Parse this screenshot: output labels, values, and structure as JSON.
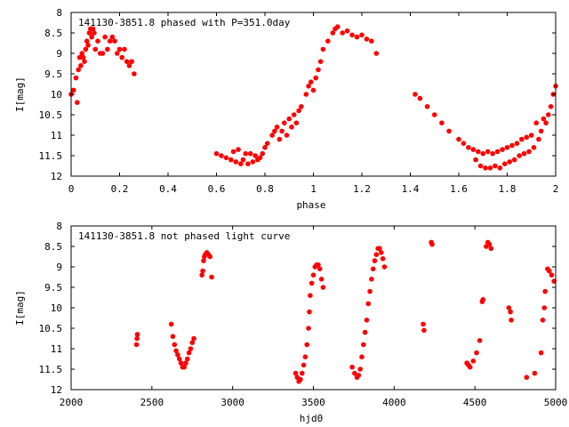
{
  "chart_data": [
    {
      "type": "scatter",
      "title": "141130-3851.8 phased with P=351.0day",
      "xlabel": "phase",
      "ylabel": "I[mag]",
      "xlim": [
        0,
        2
      ],
      "ylim": [
        8,
        12
      ],
      "y_inverted": true,
      "grid": false,
      "xticks": [
        "0",
        "0.2",
        "0.4",
        "0.6",
        "0.8",
        "1",
        "1.2",
        "1.4",
        "1.6",
        "1.8",
        "2"
      ],
      "yticks": [
        "8",
        "8.5",
        "9",
        "9.5",
        "10",
        "10.5",
        "11",
        "11.5",
        "12"
      ],
      "marker_color": "#ff0000",
      "series": [
        {
          "points": [
            [
              0.0,
              10.0
            ],
            [
              0.01,
              9.9
            ],
            [
              0.02,
              9.6
            ],
            [
              0.025,
              10.2
            ],
            [
              0.03,
              9.4
            ],
            [
              0.035,
              9.1
            ],
            [
              0.04,
              9.3
            ],
            [
              0.045,
              9.0
            ],
            [
              0.05,
              9.1
            ],
            [
              0.055,
              9.2
            ],
            [
              0.06,
              8.9
            ],
            [
              0.065,
              8.7
            ],
            [
              0.07,
              8.8
            ],
            [
              0.075,
              8.5
            ],
            [
              0.08,
              8.4
            ],
            [
              0.085,
              8.6
            ],
            [
              0.09,
              8.4
            ],
            [
              0.095,
              8.5
            ],
            [
              0.1,
              8.9
            ],
            [
              0.11,
              8.7
            ],
            [
              0.12,
              9.0
            ],
            [
              0.13,
              9.0
            ],
            [
              0.14,
              8.6
            ],
            [
              0.15,
              8.9
            ],
            [
              0.16,
              8.7
            ],
            [
              0.17,
              8.6
            ],
            [
              0.18,
              8.7
            ],
            [
              0.19,
              9.0
            ],
            [
              0.2,
              8.9
            ],
            [
              0.21,
              9.1
            ],
            [
              0.22,
              8.9
            ],
            [
              0.23,
              9.2
            ],
            [
              0.24,
              9.3
            ],
            [
              0.25,
              9.2
            ],
            [
              0.26,
              9.5
            ],
            [
              0.6,
              11.45
            ],
            [
              0.62,
              11.5
            ],
            [
              0.64,
              11.55
            ],
            [
              0.66,
              11.6
            ],
            [
              0.67,
              11.4
            ],
            [
              0.68,
              11.65
            ],
            [
              0.69,
              11.35
            ],
            [
              0.7,
              11.7
            ],
            [
              0.71,
              11.6
            ],
            [
              0.72,
              11.45
            ],
            [
              0.73,
              11.7
            ],
            [
              0.74,
              11.45
            ],
            [
              0.75,
              11.65
            ],
            [
              0.76,
              11.5
            ],
            [
              0.77,
              11.6
            ],
            [
              0.78,
              11.55
            ],
            [
              0.79,
              11.45
            ],
            [
              0.8,
              11.3
            ],
            [
              0.81,
              11.2
            ],
            [
              0.83,
              11.0
            ],
            [
              0.84,
              10.9
            ],
            [
              0.85,
              10.8
            ],
            [
              0.86,
              11.1
            ],
            [
              0.87,
              10.9
            ],
            [
              0.88,
              10.7
            ],
            [
              0.89,
              11.0
            ],
            [
              0.9,
              10.6
            ],
            [
              0.91,
              10.8
            ],
            [
              0.92,
              10.5
            ],
            [
              0.93,
              10.7
            ],
            [
              0.94,
              10.4
            ],
            [
              0.95,
              10.3
            ],
            [
              0.97,
              10.0
            ],
            [
              0.98,
              9.8
            ],
            [
              0.99,
              9.7
            ],
            [
              1.0,
              9.9
            ],
            [
              1.01,
              9.6
            ],
            [
              1.02,
              9.4
            ],
            [
              1.03,
              9.2
            ],
            [
              1.04,
              8.9
            ],
            [
              1.06,
              8.7
            ],
            [
              1.08,
              8.5
            ],
            [
              1.09,
              8.4
            ],
            [
              1.1,
              8.35
            ],
            [
              1.12,
              8.5
            ],
            [
              1.14,
              8.45
            ],
            [
              1.16,
              8.55
            ],
            [
              1.18,
              8.6
            ],
            [
              1.2,
              8.55
            ],
            [
              1.22,
              8.65
            ],
            [
              1.24,
              8.7
            ],
            [
              1.26,
              9.0
            ],
            [
              1.42,
              10.0
            ],
            [
              1.44,
              10.1
            ],
            [
              1.47,
              10.3
            ],
            [
              1.5,
              10.5
            ],
            [
              1.53,
              10.7
            ],
            [
              1.56,
              10.9
            ],
            [
              1.6,
              11.1
            ],
            [
              1.62,
              11.2
            ],
            [
              1.64,
              11.3
            ],
            [
              1.66,
              11.35
            ],
            [
              1.67,
              11.6
            ],
            [
              1.68,
              11.4
            ],
            [
              1.69,
              11.75
            ],
            [
              1.7,
              11.45
            ],
            [
              1.71,
              11.8
            ],
            [
              1.72,
              11.4
            ],
            [
              1.73,
              11.8
            ],
            [
              1.74,
              11.45
            ],
            [
              1.75,
              11.75
            ],
            [
              1.76,
              11.4
            ],
            [
              1.77,
              11.8
            ],
            [
              1.78,
              11.35
            ],
            [
              1.79,
              11.7
            ],
            [
              1.8,
              11.3
            ],
            [
              1.81,
              11.65
            ],
            [
              1.82,
              11.25
            ],
            [
              1.83,
              11.6
            ],
            [
              1.84,
              11.2
            ],
            [
              1.85,
              11.5
            ],
            [
              1.86,
              11.1
            ],
            [
              1.87,
              11.45
            ],
            [
              1.88,
              11.05
            ],
            [
              1.89,
              11.4
            ],
            [
              1.9,
              11.0
            ],
            [
              1.91,
              11.3
            ],
            [
              1.92,
              10.7
            ],
            [
              1.93,
              11.1
            ],
            [
              1.94,
              10.9
            ],
            [
              1.95,
              10.6
            ],
            [
              1.96,
              10.7
            ],
            [
              1.97,
              10.5
            ],
            [
              1.98,
              10.3
            ],
            [
              1.99,
              10.0
            ],
            [
              2.0,
              9.8
            ]
          ]
        }
      ]
    },
    {
      "type": "scatter",
      "title": "141130-3851.8 not phased light curve",
      "xlabel": "hjd0",
      "ylabel": "I[mag]",
      "xlim": [
        2000,
        5000
      ],
      "ylim": [
        8,
        12
      ],
      "y_inverted": true,
      "grid": false,
      "xticks": [
        "2000",
        "2500",
        "3000",
        "3500",
        "4000",
        "4500",
        "5000"
      ],
      "yticks": [
        "8",
        "8.5",
        "9",
        "9.5",
        "10",
        "10.5",
        "11",
        "11.5",
        "12"
      ],
      "marker_color": "#ff0000",
      "series": [
        {
          "points": [
            [
              2405,
              10.9
            ],
            [
              2408,
              10.75
            ],
            [
              2410,
              10.65
            ],
            [
              2620,
              10.4
            ],
            [
              2630,
              10.7
            ],
            [
              2640,
              10.9
            ],
            [
              2650,
              11.05
            ],
            [
              2660,
              11.15
            ],
            [
              2670,
              11.25
            ],
            [
              2680,
              11.35
            ],
            [
              2690,
              11.45
            ],
            [
              2700,
              11.45
            ],
            [
              2710,
              11.35
            ],
            [
              2720,
              11.25
            ],
            [
              2730,
              11.1
            ],
            [
              2740,
              11.0
            ],
            [
              2750,
              10.85
            ],
            [
              2760,
              10.75
            ],
            [
              2810,
              9.2
            ],
            [
              2815,
              9.1
            ],
            [
              2820,
              8.85
            ],
            [
              2825,
              8.75
            ],
            [
              2830,
              8.7
            ],
            [
              2840,
              8.65
            ],
            [
              2850,
              8.7
            ],
            [
              2860,
              8.75
            ],
            [
              2870,
              9.25
            ],
            [
              3390,
              11.6
            ],
            [
              3400,
              11.7
            ],
            [
              3410,
              11.8
            ],
            [
              3420,
              11.75
            ],
            [
              3430,
              11.6
            ],
            [
              3440,
              11.4
            ],
            [
              3450,
              11.2
            ],
            [
              3460,
              10.9
            ],
            [
              3470,
              10.5
            ],
            [
              3475,
              10.1
            ],
            [
              3480,
              9.7
            ],
            [
              3490,
              9.4
            ],
            [
              3500,
              9.2
            ],
            [
              3510,
              9.0
            ],
            [
              3520,
              8.95
            ],
            [
              3530,
              8.95
            ],
            [
              3540,
              9.05
            ],
            [
              3550,
              9.3
            ],
            [
              3560,
              9.5
            ],
            [
              3740,
              11.45
            ],
            [
              3755,
              11.6
            ],
            [
              3770,
              11.7
            ],
            [
              3780,
              11.65
            ],
            [
              3790,
              11.5
            ],
            [
              3800,
              11.2
            ],
            [
              3810,
              10.9
            ],
            [
              3820,
              10.6
            ],
            [
              3830,
              10.3
            ],
            [
              3840,
              9.9
            ],
            [
              3850,
              9.6
            ],
            [
              3860,
              9.3
            ],
            [
              3870,
              9.05
            ],
            [
              3880,
              8.85
            ],
            [
              3890,
              8.7
            ],
            [
              3900,
              8.55
            ],
            [
              3910,
              8.55
            ],
            [
              3920,
              8.65
            ],
            [
              3930,
              8.8
            ],
            [
              3940,
              9.0
            ],
            [
              4180,
              10.4
            ],
            [
              4185,
              10.55
            ],
            [
              4230,
              8.4
            ],
            [
              4235,
              8.45
            ],
            [
              4450,
              11.35
            ],
            [
              4460,
              11.4
            ],
            [
              4470,
              11.45
            ],
            [
              4490,
              11.3
            ],
            [
              4510,
              11.1
            ],
            [
              4530,
              10.8
            ],
            [
              4545,
              9.85
            ],
            [
              4550,
              9.8
            ],
            [
              4570,
              8.5
            ],
            [
              4580,
              8.4
            ],
            [
              4590,
              8.45
            ],
            [
              4600,
              8.55
            ],
            [
              4710,
              10.0
            ],
            [
              4720,
              10.1
            ],
            [
              4725,
              10.3
            ],
            [
              4820,
              11.7
            ],
            [
              4870,
              11.6
            ],
            [
              4910,
              11.1
            ],
            [
              4920,
              10.3
            ],
            [
              4930,
              10.0
            ],
            [
              4935,
              9.6
            ],
            [
              4950,
              9.05
            ],
            [
              4960,
              9.1
            ],
            [
              4975,
              9.2
            ],
            [
              4990,
              9.35
            ]
          ]
        }
      ]
    }
  ]
}
